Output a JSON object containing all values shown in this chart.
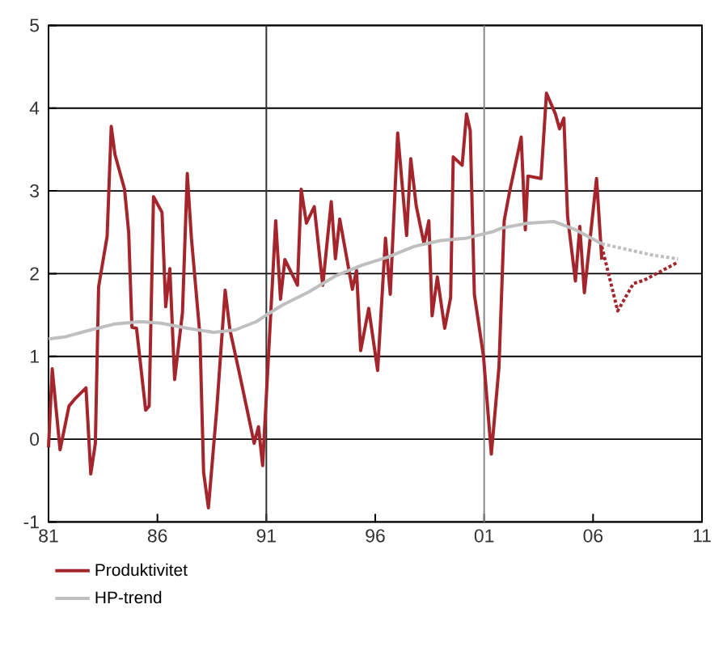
{
  "chart_data": {
    "type": "line",
    "x": [
      1981.0,
      1981.17,
      1981.53,
      1981.94,
      1982.19,
      1982.72,
      1982.94,
      1983.15,
      1983.3,
      1983.69,
      1983.88,
      1984.05,
      1984.49,
      1984.68,
      1984.83,
      1985.04,
      1985.46,
      1985.62,
      1985.82,
      1986.21,
      1986.38,
      1986.57,
      1986.79,
      1987.15,
      1987.37,
      1987.56,
      1987.95,
      1988.12,
      1988.34,
      1988.72,
      1989.11,
      1989.33,
      1989.81,
      1990.44,
      1990.64,
      1990.83,
      1991.43,
      1991.65,
      1991.85,
      1992.43,
      1992.6,
      1992.84,
      1993.2,
      1993.59,
      1993.98,
      1994.17,
      1994.37,
      1994.95,
      1995.14,
      1995.33,
      1995.7,
      1996.11,
      1996.47,
      1996.69,
      1997.03,
      1997.44,
      1997.63,
      1997.88,
      1998.24,
      1998.46,
      1998.61,
      1998.85,
      1999.19,
      1999.46,
      1999.58,
      1999.99,
      2000.19,
      2000.36,
      2000.55,
      2000.97,
      2001.33,
      2001.68,
      2001.92,
      2002.16,
      2002.7,
      2002.89,
      2003.01,
      2003.61,
      2003.86,
      2004.27,
      2004.46,
      2004.66,
      2004.83,
      2005.19,
      2005.39,
      2005.6,
      2006.16,
      2006.4
    ],
    "series": [
      {
        "name": "Produktivitet",
        "color": "#a4262c",
        "line_style": "solid",
        "values": [
          -0.1,
          0.85,
          -0.13,
          0.4,
          0.48,
          0.62,
          -0.42,
          -0.05,
          1.84,
          2.45,
          3.78,
          3.44,
          3.02,
          2.5,
          1.35,
          1.34,
          0.35,
          0.4,
          2.93,
          2.74,
          1.6,
          2.06,
          0.72,
          1.53,
          3.21,
          2.43,
          1.26,
          -0.4,
          -0.83,
          0.35,
          1.8,
          1.32,
          0.74,
          -0.05,
          0.15,
          -0.32,
          2.64,
          1.69,
          2.17,
          1.86,
          3.02,
          2.61,
          2.81,
          1.86,
          2.87,
          2.18,
          2.66,
          1.81,
          2.04,
          1.07,
          1.58,
          0.83,
          2.43,
          1.75,
          3.7,
          2.46,
          3.39,
          2.82,
          2.36,
          2.64,
          1.49,
          1.96,
          1.34,
          1.71,
          3.41,
          3.31,
          3.93,
          3.73,
          1.75,
          1.0,
          -0.18,
          0.87,
          2.64,
          2.98,
          3.65,
          2.53,
          3.18,
          3.15,
          4.18,
          3.93,
          3.75,
          3.88,
          2.69,
          1.91,
          2.57,
          1.77,
          3.15,
          2.17
        ]
      },
      {
        "color": "#a4262c",
        "line_style": "dotted",
        "x": [
          2006.4,
          2007.13,
          2007.85,
          2008.34,
          2009.91
        ],
        "values": [
          2.33,
          1.55,
          1.88,
          1.92,
          2.14
        ]
      },
      {
        "name": "HP-trend",
        "color": "#bfbfbf",
        "line_style": "solid",
        "x": [
          1981.0,
          1981.82,
          1982.79,
          1984.0,
          1985.21,
          1986.18,
          1987.39,
          1988.6,
          1989.57,
          1990.54,
          1991.0,
          1991.74,
          1992.95,
          1994.16,
          1995.37,
          1996.58,
          1997.8,
          1999.0,
          2000.2,
          2001.43,
          2001.8,
          2003.0,
          2004.2,
          2005.2,
          2006.4
        ],
        "values": [
          1.21,
          1.24,
          1.31,
          1.39,
          1.42,
          1.4,
          1.34,
          1.29,
          1.32,
          1.42,
          1.5,
          1.62,
          1.78,
          1.97,
          2.1,
          2.2,
          2.33,
          2.4,
          2.43,
          2.51,
          2.55,
          2.61,
          2.63,
          2.53,
          2.36
        ]
      },
      {
        "color": "#bfbfbf",
        "line_style": "dotted",
        "x": [
          2006.4,
          2007.6,
          2008.8,
          2009.9
        ],
        "values": [
          2.36,
          2.29,
          2.22,
          2.18
        ]
      }
    ],
    "xlim": [
      1981,
      2011
    ],
    "xticks": [
      {
        "value": 1981,
        "label": "81"
      },
      {
        "value": 1986,
        "label": "86"
      },
      {
        "value": 1991,
        "label": "91"
      },
      {
        "value": 1996,
        "label": "96"
      },
      {
        "value": 2001,
        "label": "01"
      },
      {
        "value": 2006,
        "label": "06"
      },
      {
        "value": 2011,
        "label": "11"
      }
    ],
    "ylim": [
      -1,
      5
    ],
    "yticks": [
      -1,
      0,
      1,
      2,
      3,
      4,
      5
    ],
    "ref_lines": [
      {
        "axis": "x",
        "value": 1991,
        "color": "#333333"
      },
      {
        "axis": "x",
        "value": 2001,
        "color": "#888888"
      }
    ],
    "grid": "y",
    "legend": "bottom",
    "marker": "none"
  }
}
